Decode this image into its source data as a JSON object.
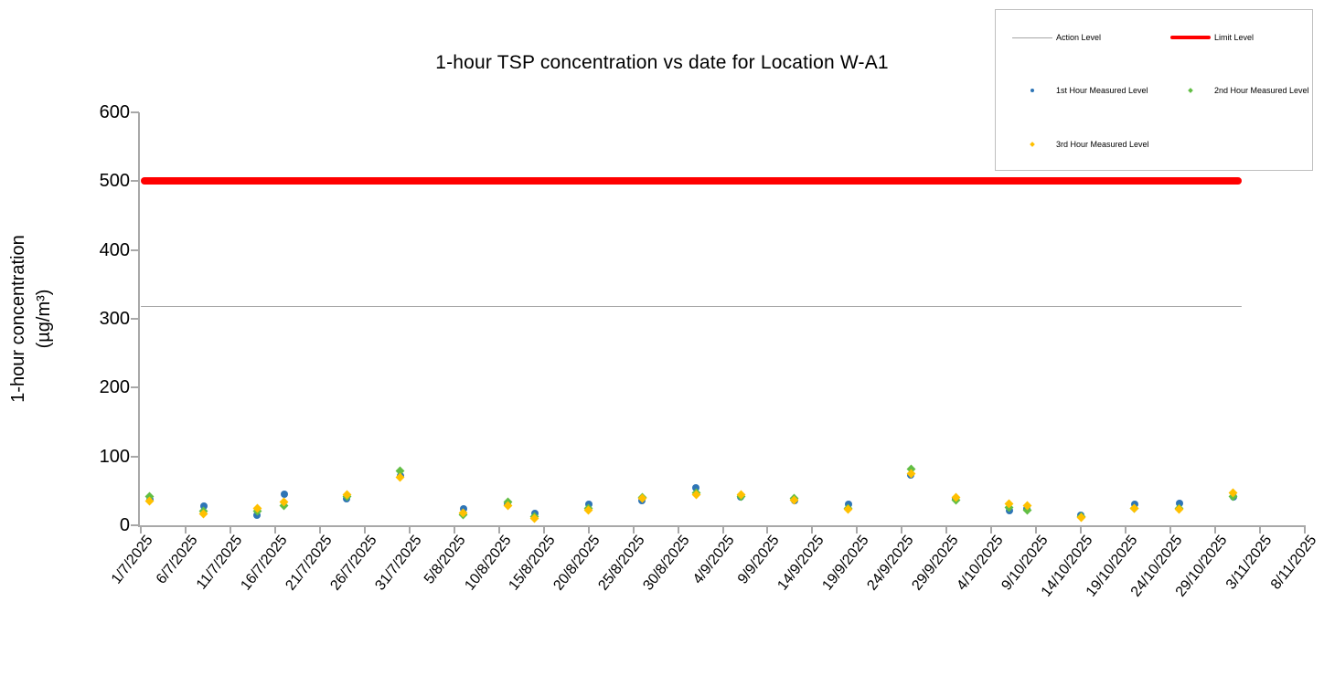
{
  "y_axis": {
    "label_line1": "1-hour concentration",
    "label_line2": "(µg/m³)",
    "tick_labels": [
      "0",
      "100",
      "200",
      "300",
      "400",
      "500",
      "600"
    ]
  },
  "legend": {
    "items": [
      {
        "label": "Action Level",
        "swatch": "gray-line"
      },
      {
        "label": "Limit Level",
        "swatch": "red-line"
      },
      {
        "label": "1st Hour Measured Level",
        "swatch": "blue-dot"
      },
      {
        "label": "2nd Hour Measured Level",
        "swatch": "green-dot"
      },
      {
        "label": "3rd Hour Measured Level",
        "swatch": "orange-dot"
      }
    ]
  },
  "chart_data": {
    "type": "scatter",
    "title": "1-hour TSP concentration vs date for Location W-A1",
    "xlabel": "",
    "ylabel": "1-hour concentration (µg/m³)",
    "ylim": [
      0,
      600
    ],
    "y_tick_step": 100,
    "grid": false,
    "legend_position": "top-right",
    "x_axis_start": "1/7/2025",
    "x_axis_end": "8/11/2025",
    "x_span_days": 130,
    "x_tick_labels": [
      "1/7/2025",
      "6/7/2025",
      "11/7/2025",
      "16/7/2025",
      "21/7/2025",
      "26/7/2025",
      "31/7/2025",
      "5/8/2025",
      "10/8/2025",
      "15/8/2025",
      "20/8/2025",
      "25/8/2025",
      "30/8/2025",
      "4/9/2025",
      "9/9/2025",
      "14/9/2025",
      "19/9/2025",
      "24/9/2025",
      "29/9/2025",
      "4/10/2025",
      "9/10/2025",
      "14/10/2025",
      "19/10/2025",
      "24/10/2025",
      "29/10/2025",
      "3/11/2025",
      "8/11/2025"
    ],
    "reference_lines": [
      {
        "name": "Action Level",
        "value": 318,
        "color": "#a6a6a6",
        "thickness": 1
      },
      {
        "name": "Limit Level",
        "value": 500,
        "color": "#ff0000",
        "thickness": 8
      }
    ],
    "dates": [
      "2/7/2025",
      "8/7/2025",
      "14/7/2025",
      "17/7/2025",
      "24/7/2025",
      "30/7/2025",
      "6/8/2025",
      "11/8/2025",
      "14/8/2025",
      "20/8/2025",
      "26/8/2025",
      "1/9/2025",
      "6/9/2025",
      "12/9/2025",
      "18/9/2025",
      "25/9/2025",
      "30/9/2025",
      "6/10/2025",
      "8/10/2025",
      "14/10/2025",
      "20/10/2025",
      "25/10/2025",
      "31/10/2025"
    ],
    "series": [
      {
        "name": "1st Hour Measured Level",
        "marker": "circle",
        "color": "#2e75b6",
        "values": [
          37,
          28,
          15,
          45,
          39,
          72,
          24,
          30,
          17,
          30,
          36,
          54,
          41,
          36,
          30,
          73,
          38,
          21,
          24,
          15,
          30,
          32,
          41
        ]
      },
      {
        "name": "2nd Hour Measured Level",
        "marker": "diamond",
        "color": "#62be45",
        "values": [
          42,
          20,
          21,
          28,
          42,
          79,
          15,
          34,
          12,
          24,
          41,
          47,
          42,
          39,
          25,
          81,
          37,
          26,
          22,
          12,
          25,
          24,
          42
        ]
      },
      {
        "name": "3rd Hour Measured Level",
        "marker": "diamond",
        "color": "#ffc000",
        "values": [
          35,
          17,
          24,
          34,
          44,
          70,
          18,
          28,
          10,
          22,
          39,
          44,
          44,
          37,
          23,
          75,
          40,
          31,
          29,
          11,
          24,
          23,
          47
        ]
      }
    ]
  }
}
